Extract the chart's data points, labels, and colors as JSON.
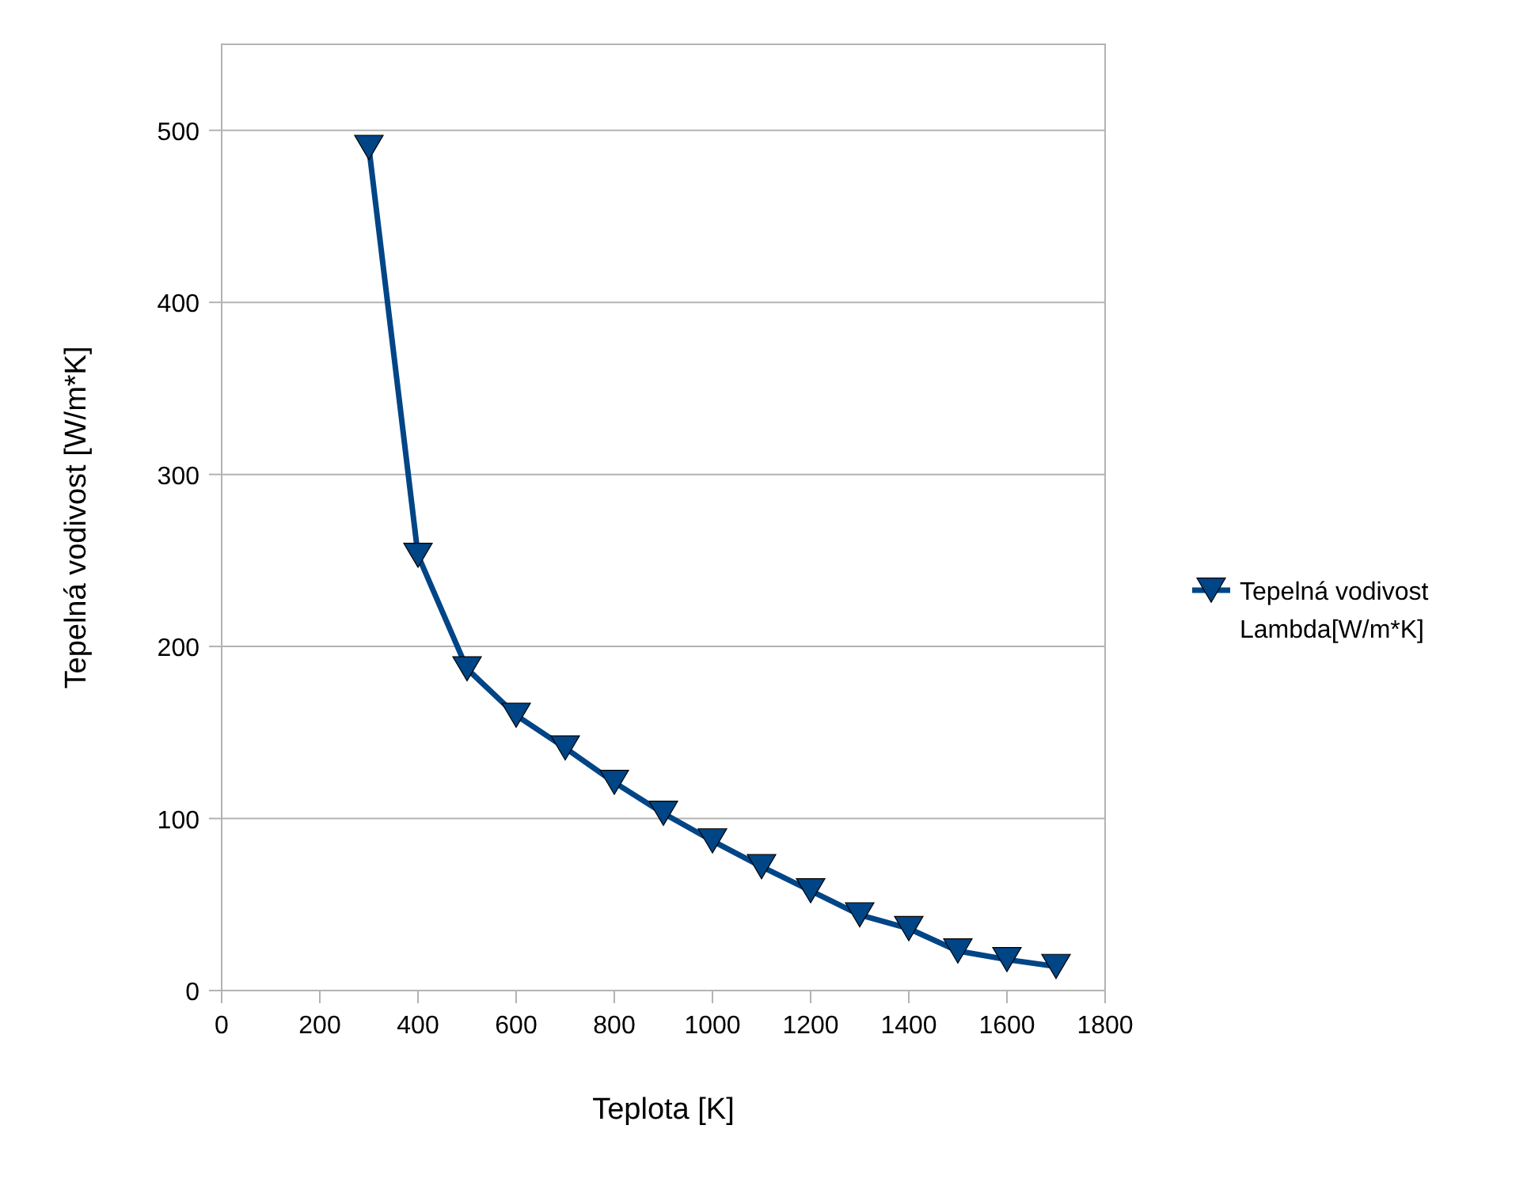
{
  "chart_data": {
    "type": "line",
    "xlabel": "Teplota [K]",
    "ylabel": "Tepelná vodivost [W/m*K]",
    "x": [
      300,
      400,
      500,
      600,
      700,
      800,
      900,
      1000,
      1100,
      1200,
      1300,
      1400,
      1500,
      1600,
      1700
    ],
    "series": [
      {
        "name": "Tepelná vodivost Lambda[W/m*K]",
        "color": "#004586",
        "values": [
          490,
          253,
          187,
          160,
          141,
          121,
          103,
          87,
          72,
          58,
          44,
          36,
          23,
          18,
          14
        ]
      }
    ],
    "xlim": [
      0,
      1800
    ],
    "xticks": [
      0,
      200,
      400,
      600,
      800,
      1000,
      1200,
      1400,
      1600,
      1800
    ],
    "ylim": [
      0,
      550
    ],
    "yticks": [
      0,
      100,
      200,
      300,
      400,
      500
    ],
    "grid": "y",
    "legend": "right",
    "marker": "triangle",
    "line_style": "solid"
  }
}
